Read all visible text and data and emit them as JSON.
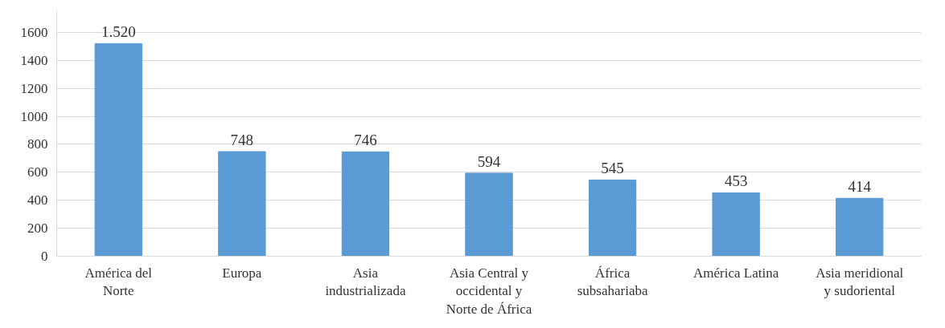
{
  "chart_data": {
    "type": "bar",
    "categories": [
      "América del Norte",
      "Europa",
      "Asia industrializada",
      "Asia Central y occidental y Norte de África",
      "África subsahariaba",
      "América Latina",
      "Asia meridional y sudoriental"
    ],
    "values": [
      1520,
      748,
      746,
      594,
      545,
      453,
      414
    ],
    "value_labels": [
      "1.520",
      "748",
      "746",
      "594",
      "545",
      "453",
      "414"
    ],
    "color": "#5b9bd5",
    "ylim": [
      0,
      1760
    ],
    "yticks": [
      0,
      200,
      400,
      600,
      800,
      1000,
      1200,
      1400,
      1600
    ],
    "grid": "y"
  }
}
